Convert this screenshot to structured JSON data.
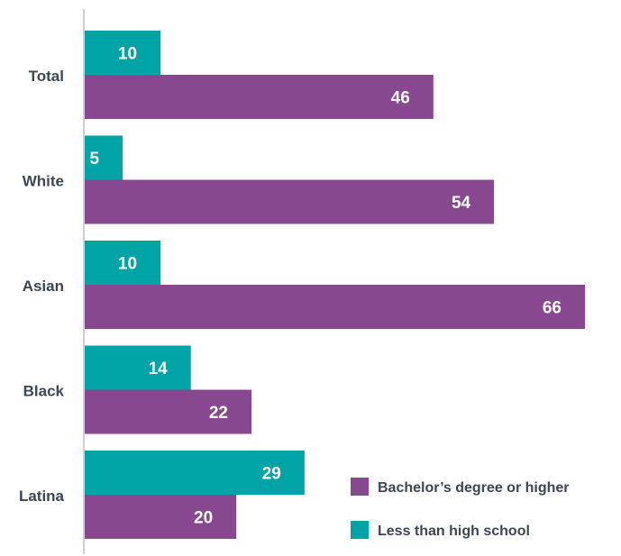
{
  "chart_data": {
    "type": "bar",
    "orientation": "horizontal",
    "categories": [
      "Total",
      "White",
      "Asian",
      "Black",
      "Latina"
    ],
    "series": [
      {
        "name": "Less than high school",
        "color": "#00a3a6",
        "values": [
          10,
          5,
          10,
          14,
          29
        ]
      },
      {
        "name": "Bachelor’s degree or higher",
        "color": "#88488f",
        "values": [
          46,
          54,
          66,
          22,
          20
        ]
      }
    ],
    "legend": {
      "position": "bottom-right",
      "items": [
        "Bachelor’s degree or higher",
        "Less than high school"
      ]
    },
    "title": "",
    "xlabel": "",
    "ylabel": "",
    "xlim": [
      0,
      66
    ],
    "grid": false
  }
}
